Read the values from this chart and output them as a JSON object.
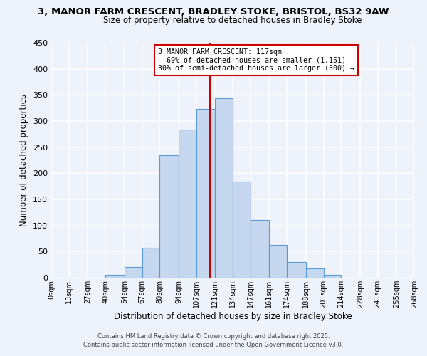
{
  "title1": "3, MANOR FARM CRESCENT, BRADLEY STOKE, BRISTOL, BS32 9AW",
  "title2": "Size of property relative to detached houses in Bradley Stoke",
  "xlabel": "Distribution of detached houses by size in Bradley Stoke",
  "ylabel": "Number of detached properties",
  "bin_labels": [
    "0sqm",
    "13sqm",
    "27sqm",
    "40sqm",
    "54sqm",
    "67sqm",
    "80sqm",
    "94sqm",
    "107sqm",
    "121sqm",
    "134sqm",
    "147sqm",
    "161sqm",
    "174sqm",
    "188sqm",
    "201sqm",
    "214sqm",
    "228sqm",
    "241sqm",
    "255sqm",
    "268sqm"
  ],
  "bin_edges": [
    0,
    13,
    27,
    40,
    54,
    67,
    80,
    94,
    107,
    121,
    134,
    147,
    161,
    174,
    188,
    201,
    214,
    228,
    241,
    255,
    268
  ],
  "bar_heights": [
    0,
    0,
    0,
    6,
    21,
    57,
    234,
    284,
    323,
    344,
    184,
    110,
    63,
    30,
    18,
    6,
    0,
    0,
    0,
    0
  ],
  "bar_color": "#c5d8f0",
  "bar_edge_color": "#5b9bd5",
  "vline_x": 117,
  "vline_color": "#cc0000",
  "annotation_line1": "3 MANOR FARM CRESCENT: 117sqm",
  "annotation_line2": "← 69% of detached houses are smaller (1,151)",
  "annotation_line3": "30% of semi-detached houses are larger (500) →",
  "box_edge_color": "#cc0000",
  "ylim": [
    0,
    450
  ],
  "footer1": "Contains HM Land Registry data © Crown copyright and database right 2025.",
  "footer2": "Contains public sector information licensed under the Open Government Licence v3.0.",
  "bg_color": "#eef2fb",
  "grid_color": "#ffffff"
}
